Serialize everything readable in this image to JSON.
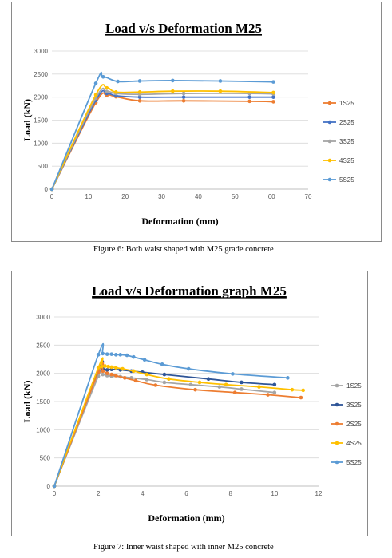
{
  "chart_data": [
    {
      "type": "line",
      "title": "Load v/s Deformation M25",
      "xlabel": "Deformation (mm)",
      "ylabel": "Load (kN)",
      "xlim": [
        0,
        70
      ],
      "ylim": [
        0,
        3000
      ],
      "xticks": [
        0,
        10,
        20,
        30,
        40,
        50,
        60,
        70
      ],
      "yticks": [
        0,
        500,
        1000,
        1500,
        2000,
        2500,
        3000
      ],
      "grid": true,
      "legend_position": "right",
      "series": [
        {
          "name": "1S25",
          "color": "#ED7D31",
          "x": [
            0,
            12,
            15,
            17.5,
            24,
            36,
            54,
            60.5
          ],
          "y": [
            0,
            1880,
            2040,
            2010,
            1920,
            1920,
            1910,
            1900
          ]
        },
        {
          "name": "2S25",
          "color": "#4472C4",
          "x": [
            0,
            12,
            15,
            17.5,
            24,
            36,
            54,
            60.5
          ],
          "y": [
            0,
            1930,
            2080,
            2030,
            2000,
            2000,
            2000,
            2000
          ]
        },
        {
          "name": "3S25",
          "color": "#A5A5A5",
          "x": [
            0,
            12,
            15,
            17.5,
            24,
            36,
            54,
            60.5
          ],
          "y": [
            0,
            1980,
            2120,
            2080,
            2060,
            2080,
            2080,
            2070
          ]
        },
        {
          "name": "4S25",
          "color": "#FFC000",
          "x": [
            0,
            12,
            15,
            17.5,
            24,
            33,
            46,
            60.5
          ],
          "y": [
            0,
            2050,
            2200,
            2110,
            2110,
            2130,
            2130,
            2100
          ]
        },
        {
          "name": "5S25",
          "color": "#5B9BD5",
          "x": [
            0,
            12,
            14,
            18,
            24,
            33,
            46,
            60.5
          ],
          "y": [
            0,
            2300,
            2440,
            2340,
            2350,
            2360,
            2350,
            2330
          ]
        }
      ]
    },
    {
      "type": "line",
      "title": "Load v/s Deformation graph M25",
      "xlabel": "Deformation (mm)",
      "ylabel": "Load (kN)",
      "xlim": [
        0,
        12
      ],
      "ylim": [
        0,
        3000
      ],
      "xticks": [
        0,
        2,
        4,
        6,
        8,
        10,
        12
      ],
      "yticks": [
        0,
        500,
        1000,
        1500,
        2000,
        2500,
        3000
      ],
      "grid": true,
      "legend_position": "right",
      "series": [
        {
          "name": "1S25",
          "color": "#A5A5A5",
          "x": [
            0,
            2.0,
            2.2,
            2.4,
            2.6,
            3.0,
            3.5,
            4.2,
            5.0,
            6.2,
            7.5,
            8.5,
            10.0
          ],
          "y": [
            0,
            1950,
            1980,
            1960,
            1950,
            1940,
            1920,
            1890,
            1840,
            1800,
            1760,
            1720,
            1660
          ]
        },
        {
          "name": "3S25",
          "color": "#2F5597",
          "x": [
            0,
            2.0,
            2.2,
            2.4,
            2.6,
            3.0,
            3.5,
            4.0,
            5.0,
            7.0,
            8.5,
            10.0
          ],
          "y": [
            0,
            2040,
            2080,
            2060,
            2070,
            2060,
            2040,
            2020,
            1980,
            1900,
            1840,
            1800
          ]
        },
        {
          "name": "2S25",
          "color": "#ED7D31",
          "x": [
            0,
            2.0,
            2.2,
            2.4,
            2.6,
            2.8,
            3.2,
            3.7,
            4.6,
            6.4,
            8.2,
            9.7,
            11.2
          ],
          "y": [
            0,
            2020,
            2040,
            2000,
            1980,
            1960,
            1920,
            1870,
            1790,
            1710,
            1660,
            1620,
            1570
          ]
        },
        {
          "name": "4S25",
          "color": "#FFC000",
          "x": [
            0,
            2.0,
            2.15,
            2.3,
            2.45,
            2.6,
            2.8,
            3.1,
            3.6,
            4.2,
            5.2,
            6.6,
            7.8,
            9.3,
            10.8,
            11.3
          ],
          "y": [
            0,
            2100,
            2120,
            2130,
            2120,
            2110,
            2100,
            2080,
            2040,
            1980,
            1900,
            1840,
            1800,
            1760,
            1710,
            1700
          ]
        },
        {
          "name": "5S25",
          "color": "#5B9BD5",
          "x": [
            0,
            2.0,
            2.2,
            2.4,
            2.6,
            2.8,
            3.0,
            3.3,
            3.6,
            4.1,
            4.9,
            6.1,
            8.1,
            10.6
          ],
          "y": [
            0,
            2330,
            2350,
            2340,
            2340,
            2330,
            2330,
            2320,
            2290,
            2240,
            2160,
            2080,
            1990,
            1920
          ]
        }
      ]
    }
  ],
  "captions": {
    "figure6": "Figure 6: Both waist shaped with M25 grade concrete",
    "figure7": "Figure 7:  Inner waist shaped with inner M25 concrete"
  }
}
